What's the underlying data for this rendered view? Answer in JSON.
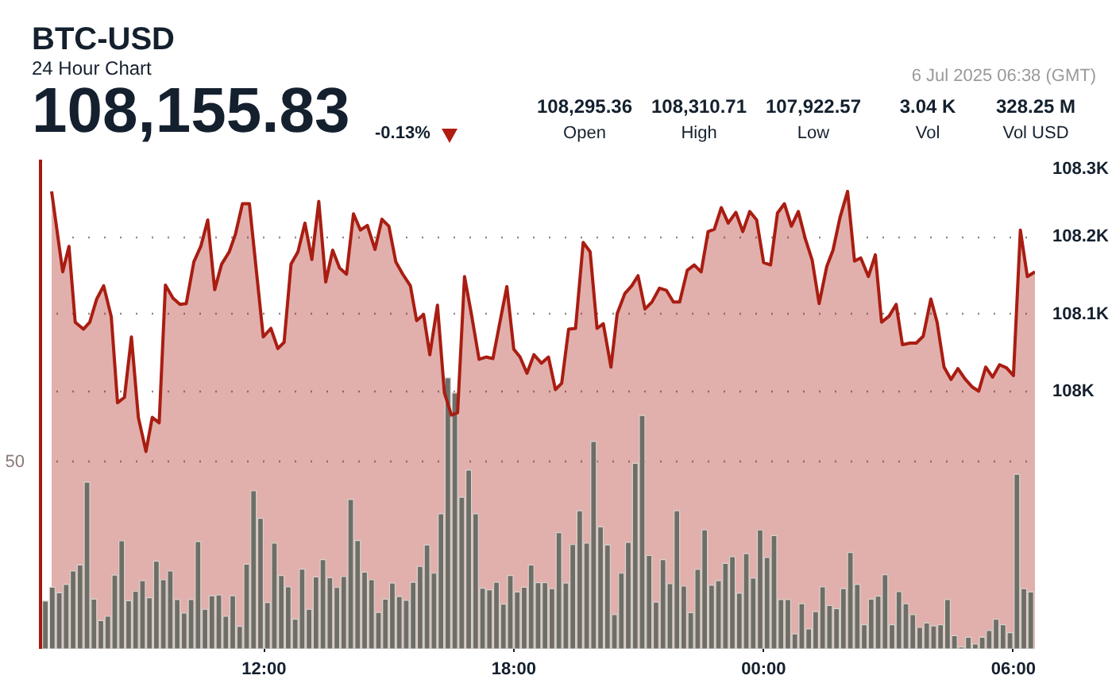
{
  "chart_data": {
    "type": "area",
    "title": "BTC-USD",
    "subtitle": "24 Hour Chart",
    "annotations": [
      "108,155.83",
      "-0.13%",
      "108,295.36",
      "Open",
      "108,310.71",
      "High",
      "107,922.57",
      "Low",
      "3.04 K",
      "Vol",
      "328.25 M",
      "Vol USD",
      "6 Jul 2025 06:38 (GMT)"
    ],
    "xlim": [
      "2025-07-05T06:38",
      "2025-07-06T06:31"
    ],
    "xticks": [
      {
        "value": "2025-07-05T12:00",
        "label": "12:00"
      },
      {
        "value": "2025-07-05T18:00",
        "label": "18:00"
      },
      {
        "value": "2025-07-06T00:00",
        "label": "00:00"
      },
      {
        "value": "2025-07-06T06:00",
        "label": "06:00"
      }
    ],
    "ylim": [
      107668,
      108300
    ],
    "yticks": [
      {
        "value": 108000,
        "label": "108K"
      },
      {
        "value": 108100,
        "label": "108.1K"
      },
      {
        "value": 108200,
        "label": "108.2K"
      },
      {
        "value": 108300,
        "label": "108.3K"
      }
    ],
    "y2lim": [
      0,
      130
    ],
    "y2ticks": [
      50
    ],
    "grid": "y",
    "series": [
      {
        "color": "#a91d12",
        "x": [
          "2025-07-05T06:54",
          "2025-07-05T07:10",
          "2025-07-05T07:19",
          "2025-07-05T07:28",
          "2025-07-05T07:40",
          "2025-07-05T07:49",
          "2025-07-05T07:59",
          "2025-07-05T08:09",
          "2025-07-05T08:20",
          "2025-07-05T08:29",
          "2025-07-05T08:39",
          "2025-07-05T08:49",
          "2025-07-05T08:59",
          "2025-07-05T09:10",
          "2025-07-05T09:19",
          "2025-07-05T09:29",
          "2025-07-05T09:38",
          "2025-07-05T09:49",
          "2025-07-05T09:59",
          "2025-07-05T10:08",
          "2025-07-05T10:19",
          "2025-07-05T10:29",
          "2025-07-05T10:39",
          "2025-07-05T10:49",
          "2025-07-05T10:59",
          "2025-07-05T11:10",
          "2025-07-05T11:19",
          "2025-07-05T11:29",
          "2025-07-05T11:39",
          "2025-07-05T11:59",
          "2025-07-05T12:10",
          "2025-07-05T12:20",
          "2025-07-05T12:29",
          "2025-07-05T12:39",
          "2025-07-05T12:49",
          "2025-07-05T12:59",
          "2025-07-05T13:09",
          "2025-07-05T13:19",
          "2025-07-05T13:29",
          "2025-07-05T13:39",
          "2025-07-05T13:49",
          "2025-07-05T13:59",
          "2025-07-05T14:09",
          "2025-07-05T14:19",
          "2025-07-05T14:29",
          "2025-07-05T14:40",
          "2025-07-05T14:50",
          "2025-07-05T15:00",
          "2025-07-05T15:10",
          "2025-07-05T15:20",
          "2025-07-05T15:31",
          "2025-07-05T15:40",
          "2025-07-05T15:50",
          "2025-07-05T15:59",
          "2025-07-05T16:10",
          "2025-07-05T16:20",
          "2025-07-05T16:30",
          "2025-07-05T16:39",
          "2025-07-05T16:49",
          "2025-07-05T16:59",
          "2025-07-05T17:10",
          "2025-07-05T17:20",
          "2025-07-05T17:30",
          "2025-07-05T17:40",
          "2025-07-05T17:50",
          "2025-07-05T18:00",
          "2025-07-05T18:09",
          "2025-07-05T18:19",
          "2025-07-05T18:29",
          "2025-07-05T18:40",
          "2025-07-05T18:50",
          "2025-07-05T19:00",
          "2025-07-05T19:09",
          "2025-07-05T19:19",
          "2025-07-05T19:29",
          "2025-07-05T19:40",
          "2025-07-05T19:50",
          "2025-07-05T20:00",
          "2025-07-05T20:09",
          "2025-07-05T20:20",
          "2025-07-05T20:29",
          "2025-07-05T20:40",
          "2025-07-05T20:50",
          "2025-07-05T20:59",
          "2025-07-05T21:09",
          "2025-07-05T21:19",
          "2025-07-05T21:30",
          "2025-07-05T21:40",
          "2025-07-05T21:50",
          "2025-07-05T21:59",
          "2025-07-05T22:10",
          "2025-07-05T22:20",
          "2025-07-05T22:30",
          "2025-07-05T22:40",
          "2025-07-05T22:49",
          "2025-07-05T22:59",
          "2025-07-05T23:09",
          "2025-07-05T23:20",
          "2025-07-05T23:30",
          "2025-07-05T23:40",
          "2025-07-05T23:50",
          "2025-07-06T00:00",
          "2025-07-06T00:10",
          "2025-07-06T00:20",
          "2025-07-06T00:30",
          "2025-07-06T00:40",
          "2025-07-06T00:50",
          "2025-07-06T01:00",
          "2025-07-06T01:10",
          "2025-07-06T01:20",
          "2025-07-06T01:31",
          "2025-07-06T01:40",
          "2025-07-06T01:50",
          "2025-07-06T02:01",
          "2025-07-06T02:11",
          "2025-07-06T02:20",
          "2025-07-06T02:31",
          "2025-07-06T02:41",
          "2025-07-06T02:50",
          "2025-07-06T03:01",
          "2025-07-06T03:11",
          "2025-07-06T03:20",
          "2025-07-06T03:31",
          "2025-07-06T03:40",
          "2025-07-06T03:50",
          "2025-07-06T04:01",
          "2025-07-06T04:10",
          "2025-07-06T04:20",
          "2025-07-06T04:30",
          "2025-07-06T04:40",
          "2025-07-06T04:50",
          "2025-07-06T05:01",
          "2025-07-06T05:10",
          "2025-07-06T05:20",
          "2025-07-06T05:30",
          "2025-07-06T05:40",
          "2025-07-06T05:50",
          "2025-07-06T06:00",
          "2025-07-06T06:10",
          "2025-07-06T06:20",
          "2025-07-06T06:31"
        ],
        "values": [
          108259,
          108155,
          108188,
          108090,
          108081,
          108090,
          108120,
          108137,
          108097,
          107986,
          107993,
          108071,
          107967,
          107923,
          107967,
          107960,
          108138,
          108121,
          108113,
          108114,
          108168,
          108188,
          108222,
          108132,
          108165,
          108181,
          108204,
          108243,
          108243,
          108071,
          108082,
          108056,
          108064,
          108165,
          108181,
          108218,
          108171,
          108246,
          108142,
          108183,
          108160,
          108152,
          108230,
          108209,
          108215,
          108184,
          108223,
          108214,
          108168,
          108152,
          108137,
          108092,
          108100,
          108048,
          108112,
          107999,
          107970,
          107973,
          108149,
          108100,
          108042,
          108045,
          108043,
          108090,
          108136,
          108055,
          108045,
          108024,
          108048,
          108037,
          108045,
          108003,
          108011,
          108081,
          108082,
          108193,
          108181,
          108082,
          108088,
          108032,
          108101,
          108127,
          108137,
          108150,
          108107,
          108116,
          108134,
          108131,
          108116,
          108116,
          108157,
          108164,
          108155,
          108207,
          108210,
          108238,
          108218,
          108232,
          108207,
          108233,
          108222,
          108167,
          108164,
          108231,
          108243,
          108214,
          108233,
          108198,
          108170,
          108114,
          108162,
          108183,
          108225,
          108259,
          108169,
          108173,
          108149,
          108177,
          108090,
          108098,
          108113,
          108061,
          108063,
          108063,
          108072,
          108120,
          108090,
          108032,
          108016,
          108030,
          108017,
          108006,
          108001,
          108032,
          108019,
          108035,
          108031,
          108021,
          108209,
          108149,
          108155
        ]
      },
      {
        "type": "bar",
        "axis": "y2",
        "color": "#6e6e66",
        "x": [
          "2025-07-05T06:45",
          "2025-07-05T06:55",
          "2025-07-05T07:05",
          "2025-07-05T07:15",
          "2025-07-05T07:25",
          "2025-07-05T07:35",
          "2025-07-05T07:45",
          "2025-07-05T07:55",
          "2025-07-05T08:05",
          "2025-07-05T08:15",
          "2025-07-05T08:25",
          "2025-07-05T08:35",
          "2025-07-05T08:45",
          "2025-07-05T08:55",
          "2025-07-05T09:05",
          "2025-07-05T09:15",
          "2025-07-05T09:25",
          "2025-07-05T09:35",
          "2025-07-05T09:45",
          "2025-07-05T09:55",
          "2025-07-05T10:05",
          "2025-07-05T10:15",
          "2025-07-05T10:25",
          "2025-07-05T10:35",
          "2025-07-05T10:45",
          "2025-07-05T10:55",
          "2025-07-05T11:05",
          "2025-07-05T11:15",
          "2025-07-05T11:25",
          "2025-07-05T11:35",
          "2025-07-05T11:45",
          "2025-07-05T11:55",
          "2025-07-05T12:05",
          "2025-07-05T12:15",
          "2025-07-05T12:25",
          "2025-07-05T12:35",
          "2025-07-05T12:45",
          "2025-07-05T12:55",
          "2025-07-05T13:05",
          "2025-07-05T13:15",
          "2025-07-05T13:25",
          "2025-07-05T13:35",
          "2025-07-05T13:45",
          "2025-07-05T13:55",
          "2025-07-05T14:05",
          "2025-07-05T14:15",
          "2025-07-05T14:25",
          "2025-07-05T14:35",
          "2025-07-05T14:45",
          "2025-07-05T14:55",
          "2025-07-05T15:05",
          "2025-07-05T15:15",
          "2025-07-05T15:25",
          "2025-07-05T15:35",
          "2025-07-05T15:45",
          "2025-07-05T15:55",
          "2025-07-05T16:05",
          "2025-07-05T16:15",
          "2025-07-05T16:25",
          "2025-07-05T16:35",
          "2025-07-05T16:45",
          "2025-07-05T16:55",
          "2025-07-05T17:05",
          "2025-07-05T17:15",
          "2025-07-05T17:25",
          "2025-07-05T17:35",
          "2025-07-05T17:45",
          "2025-07-05T17:55",
          "2025-07-05T18:05",
          "2025-07-05T18:15",
          "2025-07-05T18:25",
          "2025-07-05T18:35",
          "2025-07-05T18:45",
          "2025-07-05T18:55",
          "2025-07-05T19:05",
          "2025-07-05T19:15",
          "2025-07-05T19:25",
          "2025-07-05T19:35",
          "2025-07-05T19:45",
          "2025-07-05T19:55",
          "2025-07-05T20:05",
          "2025-07-05T20:15",
          "2025-07-05T20:25",
          "2025-07-05T20:35",
          "2025-07-05T20:45",
          "2025-07-05T20:55",
          "2025-07-05T21:05",
          "2025-07-05T21:15",
          "2025-07-05T21:25",
          "2025-07-05T21:35",
          "2025-07-05T21:45",
          "2025-07-05T21:55",
          "2025-07-05T22:05",
          "2025-07-05T22:15",
          "2025-07-05T22:25",
          "2025-07-05T22:35",
          "2025-07-05T22:45",
          "2025-07-05T22:55",
          "2025-07-05T23:05",
          "2025-07-05T23:15",
          "2025-07-05T23:25",
          "2025-07-05T23:35",
          "2025-07-05T23:45",
          "2025-07-05T23:55",
          "2025-07-06T00:05",
          "2025-07-06T00:15",
          "2025-07-06T00:25",
          "2025-07-06T00:35",
          "2025-07-06T00:45",
          "2025-07-06T00:55",
          "2025-07-06T01:05",
          "2025-07-06T01:15",
          "2025-07-06T01:25",
          "2025-07-06T01:35",
          "2025-07-06T01:45",
          "2025-07-06T01:55",
          "2025-07-06T02:05",
          "2025-07-06T02:15",
          "2025-07-06T02:25",
          "2025-07-06T02:35",
          "2025-07-06T02:45",
          "2025-07-06T02:55",
          "2025-07-06T03:05",
          "2025-07-06T03:15",
          "2025-07-06T03:25",
          "2025-07-06T03:35",
          "2025-07-06T03:45",
          "2025-07-06T03:55",
          "2025-07-06T04:05",
          "2025-07-06T04:15",
          "2025-07-06T04:25",
          "2025-07-06T04:35",
          "2025-07-06T04:45",
          "2025-07-06T04:55",
          "2025-07-06T05:05",
          "2025-07-06T05:15",
          "2025-07-06T05:25",
          "2025-07-06T05:35",
          "2025-07-06T05:45",
          "2025-07-06T05:55",
          "2025-07-06T06:05",
          "2025-07-06T06:15",
          "2025-07-06T06:25"
        ],
        "values": [
          12.7,
          16.4,
          14.9,
          17.1,
          20.7,
          22.3,
          44.3,
          13.2,
          7.5,
          8.7,
          19.6,
          28.7,
          12.8,
          15.3,
          18.1,
          13.6,
          23.3,
          18.4,
          20.7,
          13.1,
          9.5,
          13.1,
          28.5,
          10.5,
          14.1,
          14.3,
          8.7,
          14.1,
          6,
          22.5,
          42,
          34.7,
          12.3,
          28.1,
          19.5,
          16.5,
          7.9,
          21.2,
          10.5,
          19.1,
          23.7,
          18.9,
          16.3,
          19.2,
          39.7,
          28.8,
          20.4,
          18.4,
          9.7,
          13.2,
          17.5,
          13.9,
          12.9,
          17.7,
          21.9,
          27.6,
          20.1,
          35.9,
          72,
          68,
          40.3,
          47.5,
          35.9,
          16.1,
          15.7,
          17.7,
          11.9,
          19.5,
          15.1,
          16.4,
          22.3,
          17.6,
          17.6,
          16,
          30.9,
          17.5,
          27.7,
          36.7,
          28.1,
          55.1,
          32.4,
          27.6,
          9.1,
          20.1,
          28.3,
          49.3,
          62,
          24.8,
          12.4,
          23.7,
          17.3,
          36.7,
          16.7,
          9.6,
          21.1,
          31.6,
          16.9,
          18.1,
          22.7,
          24.5,
          14.8,
          25.3,
          18.8,
          31.6,
          24.3,
          30.1,
          13.1,
          13.1,
          4,
          12,
          5.3,
          9.9,
          16.5,
          11.5,
          10.7,
          16,
          25.6,
          17.1,
          6.4,
          13.2,
          14,
          19.7,
          6.4,
          15.2,
          12,
          9.1,
          5.7,
          6.9,
          6.1,
          6.4,
          13.1,
          3.5,
          0.5,
          3.1,
          1.3,
          3.1,
          4.9,
          7.9,
          6.4,
          4.3,
          46.4,
          16,
          15.1
        ]
      }
    ]
  }
}
